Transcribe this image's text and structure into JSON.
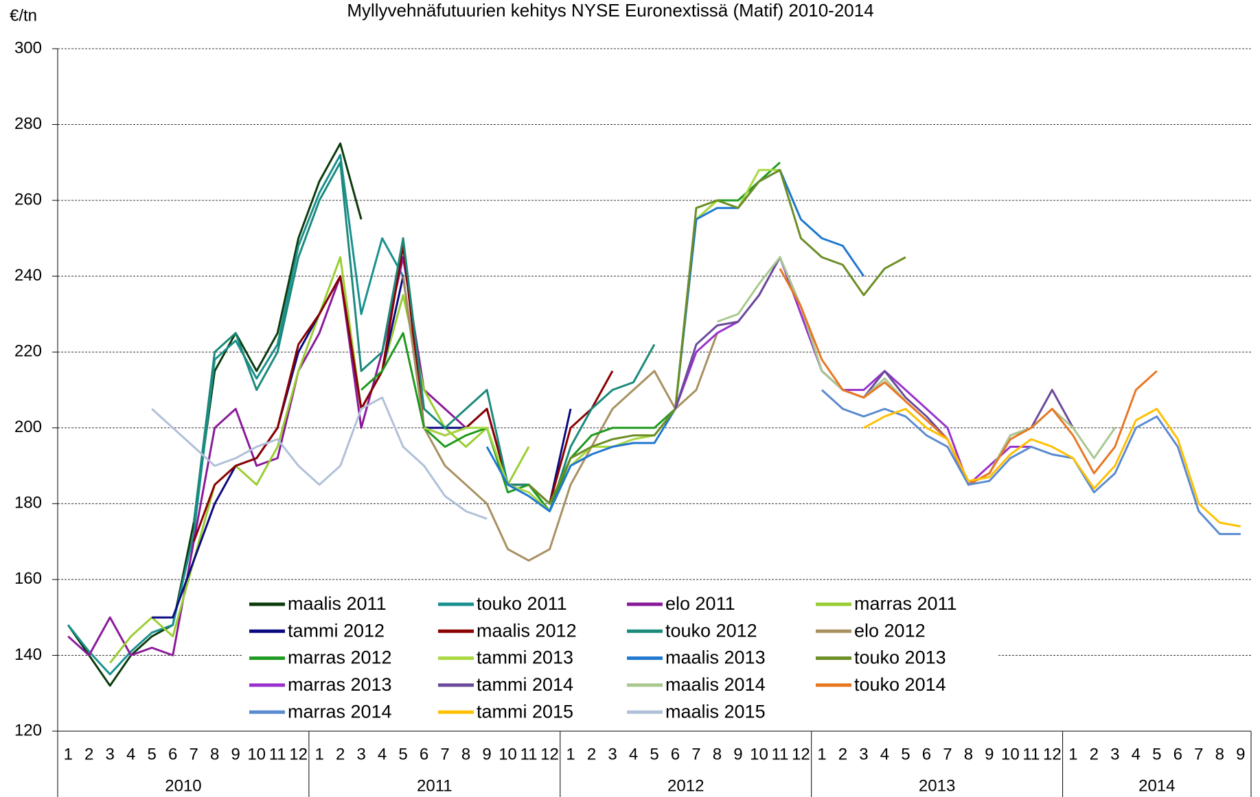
{
  "chart_data": {
    "type": "line",
    "title": "Myllyvehnäfutuurien  kehitys NYSE Euronextissä (Matif) 2010-2014",
    "y_label": "€/tn",
    "categories": [
      1,
      2,
      3,
      4,
      5,
      6,
      7,
      8,
      9,
      10,
      11,
      12,
      1,
      2,
      3,
      4,
      5,
      6,
      7,
      8,
      9,
      10,
      11,
      12,
      1,
      2,
      3,
      4,
      5,
      6,
      7,
      8,
      9,
      10,
      11,
      12,
      1,
      2,
      3,
      4,
      5,
      6,
      7,
      8,
      9,
      10,
      11,
      12,
      1,
      2,
      3,
      4,
      5,
      6,
      7,
      8,
      9
    ],
    "years": [
      "2010",
      "2011",
      "2012",
      "2013",
      "2014"
    ],
    "ylim": [
      120,
      300
    ],
    "yticks": [
      120,
      140,
      160,
      180,
      200,
      220,
      240,
      260,
      280,
      300
    ],
    "grid": true,
    "series": [
      {
        "name": "maalis 2011",
        "color": "#0b3b0b",
        "values": [
          148,
          140,
          132,
          140,
          145,
          148,
          175,
          215,
          225,
          215,
          225,
          250,
          265,
          275,
          255,
          null,
          null,
          null,
          null,
          null,
          null,
          null,
          null,
          null,
          null,
          null,
          null,
          null,
          null,
          null,
          null,
          null,
          null,
          null,
          null,
          null,
          null,
          null,
          null,
          null,
          null,
          null,
          null,
          null,
          null,
          null,
          null,
          null,
          null,
          null,
          null,
          null,
          null,
          null,
          null,
          null,
          null
        ]
      },
      {
        "name": "touko 2011",
        "color": "#1a9090",
        "values": [
          148,
          141,
          135,
          141,
          146,
          148,
          172,
          218,
          223,
          213,
          222,
          248,
          262,
          272,
          230,
          250,
          240,
          null,
          null,
          null,
          null,
          null,
          null,
          null,
          null,
          null,
          null,
          null,
          null,
          null,
          null,
          null,
          null,
          null,
          null,
          null,
          null,
          null,
          null,
          null,
          null,
          null,
          null,
          null,
          null,
          null,
          null,
          null,
          null,
          null,
          null,
          null,
          null,
          null,
          null,
          null,
          null
        ]
      },
      {
        "name": "elo 2011",
        "color": "#8a1a9a",
        "values": [
          145,
          140,
          150,
          140,
          142,
          140,
          170,
          200,
          205,
          190,
          192,
          215,
          225,
          240,
          200,
          220,
          245,
          210,
          205,
          200,
          null,
          null,
          null,
          null,
          null,
          null,
          null,
          null,
          null,
          null,
          null,
          null,
          null,
          null,
          null,
          null,
          null,
          null,
          null,
          null,
          null,
          null,
          null,
          null,
          null,
          null,
          null,
          null,
          null,
          null,
          null,
          null,
          null,
          null,
          null,
          null,
          null
        ]
      },
      {
        "name": "marras 2011",
        "color": "#9acd32",
        "values": [
          null,
          null,
          138,
          145,
          150,
          145,
          165,
          185,
          190,
          185,
          195,
          215,
          230,
          245,
          205,
          215,
          235,
          210,
          200,
          195,
          200,
          185,
          195,
          null,
          null,
          null,
          null,
          null,
          null,
          null,
          null,
          null,
          null,
          null,
          null,
          null,
          null,
          null,
          null,
          null,
          null,
          null,
          null,
          null,
          null,
          null,
          null,
          null,
          null,
          null,
          null,
          null,
          null,
          null,
          null,
          null,
          null
        ]
      },
      {
        "name": "tammi 2012",
        "color": "#0a0a80",
        "values": [
          null,
          null,
          null,
          null,
          150,
          150,
          165,
          180,
          190,
          192,
          200,
          220,
          230,
          240,
          205,
          215,
          240,
          200,
          200,
          200,
          205,
          185,
          185,
          180,
          205,
          null,
          null,
          null,
          null,
          null,
          null,
          null,
          null,
          null,
          null,
          null,
          null,
          null,
          null,
          null,
          null,
          null,
          null,
          null,
          null,
          null,
          null,
          null,
          null,
          null,
          null,
          null,
          null,
          null,
          null,
          null,
          null
        ]
      },
      {
        "name": "maalis 2012",
        "color": "#8b0000",
        "values": [
          null,
          null,
          null,
          null,
          null,
          null,
          170,
          185,
          190,
          192,
          200,
          222,
          230,
          240,
          205,
          215,
          248,
          200,
          198,
          200,
          205,
          185,
          185,
          180,
          200,
          205,
          215,
          null,
          null,
          null,
          null,
          null,
          null,
          null,
          null,
          null,
          null,
          null,
          null,
          null,
          null,
          null,
          null,
          null,
          null,
          null,
          null,
          null,
          null,
          null,
          null,
          null,
          null,
          null,
          null,
          null,
          null
        ]
      },
      {
        "name": "touko 2012",
        "color": "#1a8a7a",
        "values": [
          null,
          null,
          null,
          null,
          null,
          null,
          175,
          220,
          225,
          210,
          220,
          245,
          260,
          270,
          215,
          220,
          250,
          205,
          200,
          205,
          210,
          185,
          185,
          178,
          195,
          205,
          210,
          212,
          222,
          null,
          null,
          null,
          null,
          null,
          null,
          null,
          null,
          null,
          null,
          null,
          null,
          null,
          null,
          null,
          null,
          null,
          null,
          null,
          null,
          null,
          null,
          null,
          null,
          null,
          null,
          null,
          null
        ]
      },
      {
        "name": "elo 2012",
        "color": "#a89060",
        "values": [
          null,
          null,
          null,
          null,
          null,
          null,
          null,
          null,
          null,
          null,
          null,
          null,
          null,
          null,
          null,
          null,
          240,
          200,
          190,
          185,
          180,
          168,
          165,
          168,
          185,
          195,
          205,
          210,
          215,
          205,
          210,
          225,
          null,
          null,
          null,
          null,
          null,
          null,
          null,
          null,
          null,
          null,
          null,
          null,
          null,
          null,
          null,
          null,
          null,
          null,
          null,
          null,
          null,
          null,
          null,
          null,
          null
        ]
      },
      {
        "name": "marras 2012",
        "color": "#1e9a1e",
        "values": [
          null,
          null,
          null,
          null,
          null,
          null,
          null,
          null,
          null,
          null,
          null,
          null,
          null,
          null,
          210,
          215,
          225,
          200,
          195,
          198,
          200,
          183,
          185,
          178,
          192,
          198,
          200,
          200,
          200,
          205,
          255,
          260,
          260,
          265,
          270,
          null,
          null,
          null,
          null,
          null,
          null,
          null,
          null,
          null,
          null,
          null,
          null,
          null,
          null,
          null,
          null,
          null,
          null,
          null,
          null,
          null,
          null
        ]
      },
      {
        "name": "tammi 2013",
        "color": "#a8d840",
        "values": [
          null,
          null,
          null,
          null,
          null,
          null,
          null,
          null,
          null,
          null,
          null,
          null,
          null,
          null,
          null,
          null,
          null,
          200,
          198,
          200,
          200,
          185,
          183,
          178,
          190,
          195,
          195,
          197,
          198,
          205,
          255,
          260,
          258,
          268,
          268,
          255,
          250,
          null,
          null,
          null,
          null,
          null,
          null,
          null,
          null,
          null,
          null,
          null,
          null,
          null,
          null,
          null,
          null,
          null,
          null,
          null,
          null
        ]
      },
      {
        "name": "maalis 2013",
        "color": "#1f77d0",
        "values": [
          null,
          null,
          null,
          null,
          null,
          null,
          null,
          null,
          null,
          null,
          null,
          null,
          null,
          null,
          null,
          null,
          null,
          null,
          null,
          null,
          195,
          185,
          182,
          178,
          190,
          193,
          195,
          196,
          196,
          205,
          255,
          258,
          258,
          265,
          268,
          255,
          250,
          248,
          240,
          null,
          null,
          null,
          null,
          null,
          null,
          null,
          null,
          null,
          null,
          null,
          null,
          null,
          null,
          null,
          null,
          null,
          null
        ]
      },
      {
        "name": "touko 2013",
        "color": "#6b8e23",
        "values": [
          null,
          null,
          null,
          null,
          null,
          null,
          null,
          null,
          null,
          null,
          null,
          null,
          null,
          null,
          null,
          null,
          null,
          null,
          null,
          null,
          null,
          null,
          185,
          180,
          192,
          195,
          197,
          198,
          198,
          205,
          258,
          260,
          258,
          265,
          268,
          250,
          245,
          243,
          235,
          242,
          245,
          null,
          null,
          null,
          null,
          null,
          null,
          null,
          null,
          null,
          null,
          null,
          null,
          null,
          null,
          null,
          null
        ]
      },
      {
        "name": "marras 2013",
        "color": "#9932cc",
        "values": [
          null,
          null,
          null,
          null,
          null,
          null,
          null,
          null,
          null,
          null,
          null,
          null,
          null,
          null,
          null,
          null,
          null,
          null,
          null,
          null,
          null,
          null,
          null,
          null,
          null,
          null,
          null,
          null,
          null,
          205,
          220,
          225,
          228,
          235,
          245,
          230,
          215,
          210,
          210,
          215,
          210,
          205,
          200,
          185,
          190,
          195,
          195,
          null,
          null,
          null,
          null,
          null,
          null,
          null,
          null,
          null,
          null
        ]
      },
      {
        "name": "tammi 2014",
        "color": "#6a4a9a",
        "values": [
          null,
          null,
          null,
          null,
          null,
          null,
          null,
          null,
          null,
          null,
          null,
          null,
          null,
          null,
          null,
          null,
          null,
          null,
          null,
          null,
          null,
          null,
          null,
          null,
          null,
          null,
          null,
          null,
          null,
          205,
          222,
          227,
          228,
          235,
          245,
          232,
          215,
          210,
          208,
          215,
          208,
          203,
          197,
          185,
          188,
          198,
          200,
          210,
          200,
          null,
          null,
          null,
          null,
          null,
          null,
          null,
          null
        ]
      },
      {
        "name": "maalis 2014",
        "color": "#a8c890",
        "values": [
          null,
          null,
          null,
          null,
          null,
          null,
          null,
          null,
          null,
          null,
          null,
          null,
          null,
          null,
          null,
          null,
          null,
          null,
          null,
          null,
          null,
          null,
          null,
          null,
          null,
          null,
          null,
          null,
          null,
          null,
          null,
          228,
          230,
          238,
          245,
          232,
          215,
          210,
          208,
          213,
          207,
          202,
          197,
          185,
          188,
          198,
          200,
          205,
          200,
          192,
          200,
          null,
          null,
          null,
          null,
          null,
          null
        ]
      },
      {
        "name": "touko 2014",
        "color": "#e87722",
        "values": [
          null,
          null,
          null,
          null,
          null,
          null,
          null,
          null,
          null,
          null,
          null,
          null,
          null,
          null,
          null,
          null,
          null,
          null,
          null,
          null,
          null,
          null,
          null,
          null,
          null,
          null,
          null,
          null,
          null,
          null,
          null,
          null,
          null,
          null,
          242,
          232,
          218,
          210,
          208,
          212,
          207,
          202,
          197,
          185,
          188,
          197,
          200,
          205,
          198,
          188,
          195,
          210,
          215,
          null,
          null,
          null,
          null
        ]
      },
      {
        "name": "marras 2014",
        "color": "#5a8ad0",
        "values": [
          null,
          null,
          null,
          null,
          null,
          null,
          null,
          null,
          null,
          null,
          null,
          null,
          null,
          null,
          null,
          null,
          null,
          null,
          null,
          null,
          null,
          null,
          null,
          null,
          null,
          null,
          null,
          null,
          null,
          null,
          null,
          null,
          null,
          null,
          null,
          null,
          210,
          205,
          203,
          205,
          203,
          198,
          195,
          185,
          186,
          192,
          195,
          193,
          192,
          183,
          188,
          200,
          203,
          195,
          178,
          172,
          172
        ]
      },
      {
        "name": "tammi 2015",
        "color": "#ffc000",
        "values": [
          null,
          null,
          null,
          null,
          null,
          null,
          null,
          null,
          null,
          null,
          null,
          null,
          null,
          null,
          null,
          null,
          null,
          null,
          null,
          null,
          null,
          null,
          null,
          null,
          null,
          null,
          null,
          null,
          null,
          null,
          null,
          null,
          null,
          null,
          null,
          null,
          null,
          null,
          200,
          203,
          205,
          200,
          197,
          186,
          187,
          193,
          197,
          195,
          192,
          184,
          190,
          202,
          205,
          197,
          180,
          175,
          174
        ]
      },
      {
        "name": "maalis 2015",
        "color": "#b0c0d8",
        "values": [
          null,
          null,
          null,
          null,
          205,
          200,
          195,
          190,
          192,
          195,
          197,
          190,
          185,
          190,
          205,
          208,
          195,
          190,
          182,
          178,
          176,
          null,
          null,
          null,
          null,
          null,
          null,
          null,
          null,
          null,
          null,
          null,
          null,
          null,
          null,
          null,
          null,
          null,
          null,
          null,
          null,
          null,
          null,
          null,
          null,
          null,
          null,
          null,
          null,
          null,
          null,
          null,
          null,
          null,
          null,
          null,
          null
        ]
      }
    ]
  }
}
